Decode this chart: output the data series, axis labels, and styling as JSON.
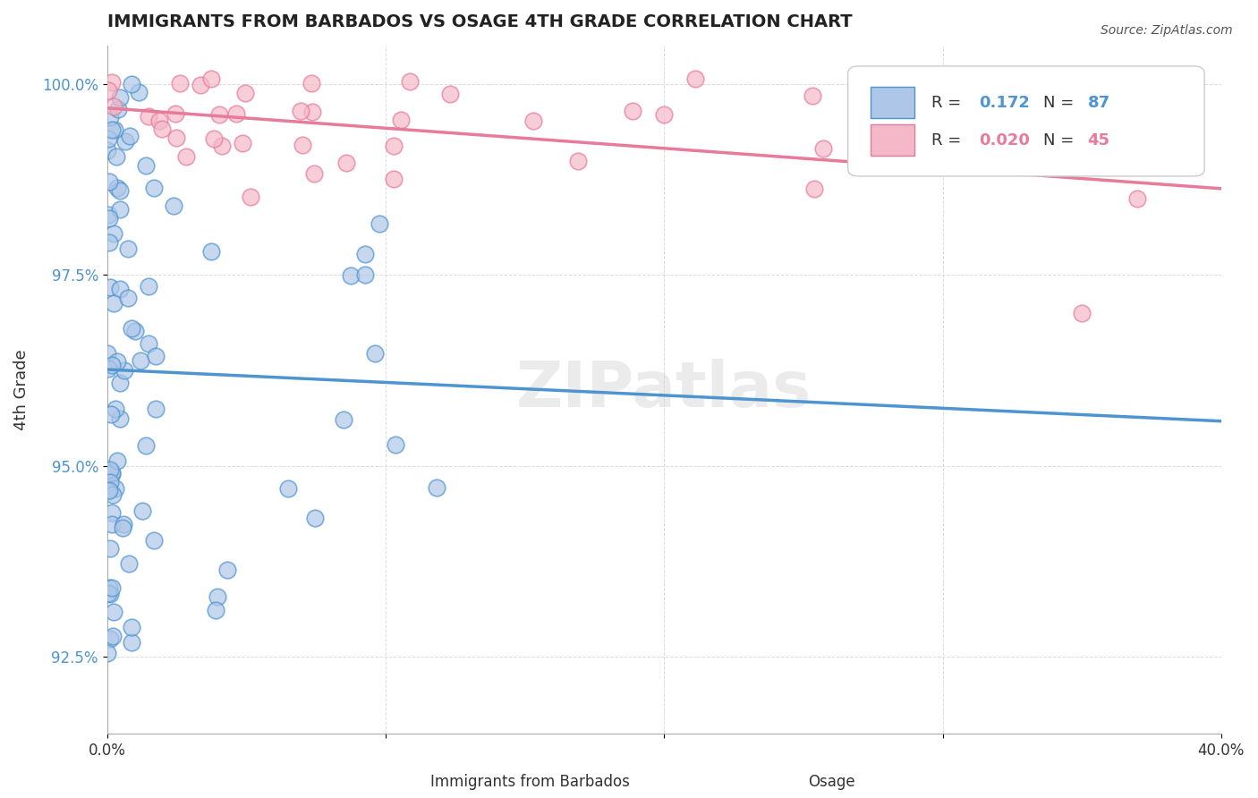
{
  "title": "IMMIGRANTS FROM BARBADOS VS OSAGE 4TH GRADE CORRELATION CHART",
  "source_text": "Source: ZipAtlas.com",
  "xlabel": "",
  "ylabel": "4th Grade",
  "xmin": 0.0,
  "xmax": 0.4,
  "ymin": 0.915,
  "ymax": 1.005,
  "yticks": [
    0.925,
    0.95,
    0.975,
    1.0
  ],
  "ytick_labels": [
    "92.5%",
    "95.0%",
    "97.5%",
    "100.0%"
  ],
  "xticks": [
    0.0,
    0.1,
    0.2,
    0.3,
    0.4
  ],
  "xtick_labels": [
    "0.0%",
    "",
    "",
    "",
    "40.0%"
  ],
  "legend_entries": [
    {
      "label": "R =  0.172   N = 87",
      "color": "#aec6e8"
    },
    {
      "label": "R =  0.020   N = 45",
      "color": "#f4b8c8"
    }
  ],
  "blue_color": "#4d94d0",
  "pink_color": "#e87a9a",
  "blue_scatter_color": "#aec6e8",
  "pink_scatter_color": "#f4b8c8",
  "watermark": "ZIPatlas",
  "blue_R": 0.172,
  "blue_N": 87,
  "pink_R": 0.02,
  "pink_N": 45,
  "blue_seed": 42,
  "pink_seed": 99,
  "figsize": [
    14.06,
    8.92
  ],
  "dpi": 100,
  "grid_color": "#cccccc",
  "background_color": "#ffffff"
}
